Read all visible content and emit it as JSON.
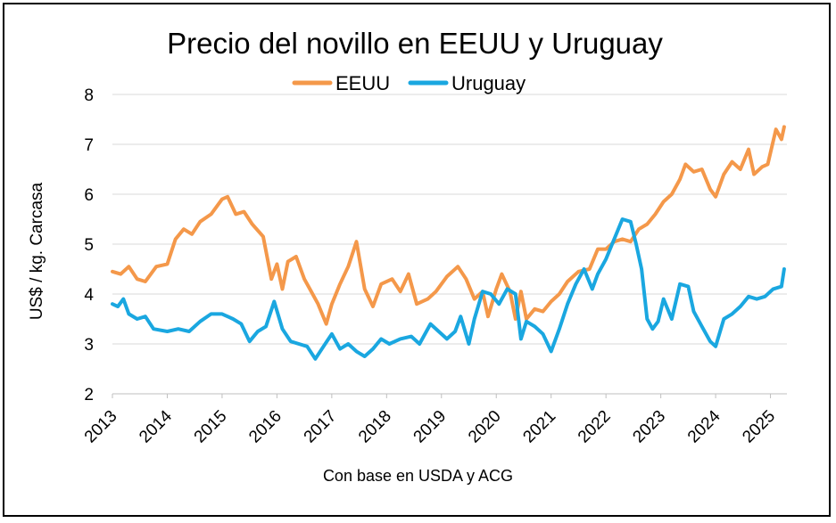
{
  "chart_data": {
    "type": "line",
    "title": "Precio del novillo en EEUU y Uruguay",
    "ylabel": "US$ / kg. Carcasa",
    "xlabel": "Con base en USDA y ACG",
    "ylim": [
      2,
      8
    ],
    "yticks": [
      "2",
      "3",
      "4",
      "5",
      "6",
      "7",
      "8"
    ],
    "xlim": [
      2013,
      2025.3
    ],
    "xticks": [
      "2013",
      "2014",
      "2015",
      "2016",
      "2017",
      "2018",
      "2019",
      "2020",
      "2021",
      "2022",
      "2023",
      "2024",
      "2025"
    ],
    "grid": true,
    "legend": "top-center",
    "series": [
      {
        "name": "EEUU",
        "color": "#f4984a",
        "points": [
          [
            2013.0,
            4.45
          ],
          [
            2013.15,
            4.4
          ],
          [
            2013.3,
            4.55
          ],
          [
            2013.45,
            4.3
          ],
          [
            2013.6,
            4.25
          ],
          [
            2013.8,
            4.55
          ],
          [
            2014.0,
            4.6
          ],
          [
            2014.15,
            5.1
          ],
          [
            2014.3,
            5.3
          ],
          [
            2014.45,
            5.2
          ],
          [
            2014.6,
            5.45
          ],
          [
            2014.8,
            5.6
          ],
          [
            2015.0,
            5.9
          ],
          [
            2015.1,
            5.95
          ],
          [
            2015.25,
            5.6
          ],
          [
            2015.4,
            5.65
          ],
          [
            2015.55,
            5.4
          ],
          [
            2015.75,
            5.15
          ],
          [
            2015.9,
            4.3
          ],
          [
            2016.0,
            4.6
          ],
          [
            2016.1,
            4.1
          ],
          [
            2016.2,
            4.65
          ],
          [
            2016.35,
            4.75
          ],
          [
            2016.5,
            4.3
          ],
          [
            2016.6,
            4.1
          ],
          [
            2016.75,
            3.8
          ],
          [
            2016.9,
            3.4
          ],
          [
            2017.0,
            3.8
          ],
          [
            2017.15,
            4.2
          ],
          [
            2017.3,
            4.55
          ],
          [
            2017.45,
            5.05
          ],
          [
            2017.6,
            4.1
          ],
          [
            2017.75,
            3.75
          ],
          [
            2017.9,
            4.2
          ],
          [
            2018.1,
            4.3
          ],
          [
            2018.25,
            4.05
          ],
          [
            2018.4,
            4.4
          ],
          [
            2018.55,
            3.8
          ],
          [
            2018.75,
            3.9
          ],
          [
            2018.9,
            4.05
          ],
          [
            2019.1,
            4.35
          ],
          [
            2019.3,
            4.55
          ],
          [
            2019.45,
            4.3
          ],
          [
            2019.6,
            3.9
          ],
          [
            2019.75,
            4.05
          ],
          [
            2019.85,
            3.55
          ],
          [
            2020.0,
            4.1
          ],
          [
            2020.1,
            4.4
          ],
          [
            2020.25,
            4.05
          ],
          [
            2020.35,
            3.5
          ],
          [
            2020.45,
            4.05
          ],
          [
            2020.55,
            3.5
          ],
          [
            2020.7,
            3.7
          ],
          [
            2020.85,
            3.65
          ],
          [
            2021.0,
            3.85
          ],
          [
            2021.15,
            4.0
          ],
          [
            2021.3,
            4.25
          ],
          [
            2021.5,
            4.45
          ],
          [
            2021.7,
            4.5
          ],
          [
            2021.85,
            4.9
          ],
          [
            2022.0,
            4.9
          ],
          [
            2022.15,
            5.05
          ],
          [
            2022.3,
            5.1
          ],
          [
            2022.45,
            5.05
          ],
          [
            2022.6,
            5.3
          ],
          [
            2022.75,
            5.4
          ],
          [
            2022.9,
            5.6
          ],
          [
            2023.05,
            5.85
          ],
          [
            2023.2,
            6.0
          ],
          [
            2023.35,
            6.3
          ],
          [
            2023.45,
            6.6
          ],
          [
            2023.6,
            6.45
          ],
          [
            2023.75,
            6.5
          ],
          [
            2023.9,
            6.1
          ],
          [
            2024.0,
            5.95
          ],
          [
            2024.15,
            6.4
          ],
          [
            2024.3,
            6.65
          ],
          [
            2024.45,
            6.5
          ],
          [
            2024.6,
            6.9
          ],
          [
            2024.7,
            6.4
          ],
          [
            2024.85,
            6.55
          ],
          [
            2024.95,
            6.6
          ],
          [
            2025.1,
            7.3
          ],
          [
            2025.2,
            7.1
          ],
          [
            2025.25,
            7.35
          ]
        ]
      },
      {
        "name": "Uruguay",
        "color": "#1aa7e0",
        "points": [
          [
            2013.0,
            3.8
          ],
          [
            2013.1,
            3.75
          ],
          [
            2013.2,
            3.9
          ],
          [
            2013.3,
            3.6
          ],
          [
            2013.45,
            3.5
          ],
          [
            2013.6,
            3.55
          ],
          [
            2013.75,
            3.3
          ],
          [
            2014.0,
            3.25
          ],
          [
            2014.2,
            3.3
          ],
          [
            2014.4,
            3.25
          ],
          [
            2014.6,
            3.45
          ],
          [
            2014.8,
            3.6
          ],
          [
            2015.0,
            3.6
          ],
          [
            2015.2,
            3.5
          ],
          [
            2015.35,
            3.4
          ],
          [
            2015.5,
            3.05
          ],
          [
            2015.65,
            3.25
          ],
          [
            2015.8,
            3.35
          ],
          [
            2015.95,
            3.85
          ],
          [
            2016.1,
            3.3
          ],
          [
            2016.25,
            3.05
          ],
          [
            2016.4,
            3.0
          ],
          [
            2016.55,
            2.95
          ],
          [
            2016.7,
            2.7
          ],
          [
            2016.85,
            2.95
          ],
          [
            2017.0,
            3.2
          ],
          [
            2017.15,
            2.9
          ],
          [
            2017.3,
            3.0
          ],
          [
            2017.45,
            2.85
          ],
          [
            2017.6,
            2.75
          ],
          [
            2017.75,
            2.9
          ],
          [
            2017.9,
            3.1
          ],
          [
            2018.05,
            3.0
          ],
          [
            2018.25,
            3.1
          ],
          [
            2018.45,
            3.15
          ],
          [
            2018.6,
            3.0
          ],
          [
            2018.8,
            3.4
          ],
          [
            2018.95,
            3.25
          ],
          [
            2019.1,
            3.1
          ],
          [
            2019.25,
            3.25
          ],
          [
            2019.35,
            3.55
          ],
          [
            2019.5,
            3.0
          ],
          [
            2019.6,
            3.5
          ],
          [
            2019.75,
            4.05
          ],
          [
            2019.9,
            4.0
          ],
          [
            2020.05,
            3.8
          ],
          [
            2020.2,
            4.1
          ],
          [
            2020.35,
            4.0
          ],
          [
            2020.45,
            3.1
          ],
          [
            2020.55,
            3.45
          ],
          [
            2020.7,
            3.35
          ],
          [
            2020.85,
            3.2
          ],
          [
            2021.0,
            2.85
          ],
          [
            2021.15,
            3.3
          ],
          [
            2021.3,
            3.8
          ],
          [
            2021.45,
            4.2
          ],
          [
            2021.6,
            4.5
          ],
          [
            2021.75,
            4.1
          ],
          [
            2021.85,
            4.4
          ],
          [
            2022.0,
            4.7
          ],
          [
            2022.15,
            5.1
          ],
          [
            2022.3,
            5.5
          ],
          [
            2022.45,
            5.45
          ],
          [
            2022.55,
            5.0
          ],
          [
            2022.65,
            4.5
          ],
          [
            2022.75,
            3.5
          ],
          [
            2022.85,
            3.3
          ],
          [
            2022.95,
            3.45
          ],
          [
            2023.05,
            3.9
          ],
          [
            2023.2,
            3.5
          ],
          [
            2023.35,
            4.2
          ],
          [
            2023.5,
            4.15
          ],
          [
            2023.6,
            3.65
          ],
          [
            2023.75,
            3.35
          ],
          [
            2023.9,
            3.05
          ],
          [
            2024.0,
            2.95
          ],
          [
            2024.15,
            3.5
          ],
          [
            2024.3,
            3.6
          ],
          [
            2024.45,
            3.75
          ],
          [
            2024.6,
            3.95
          ],
          [
            2024.75,
            3.9
          ],
          [
            2024.9,
            3.95
          ],
          [
            2025.05,
            4.1
          ],
          [
            2025.2,
            4.15
          ],
          [
            2025.25,
            4.5
          ]
        ]
      }
    ]
  }
}
